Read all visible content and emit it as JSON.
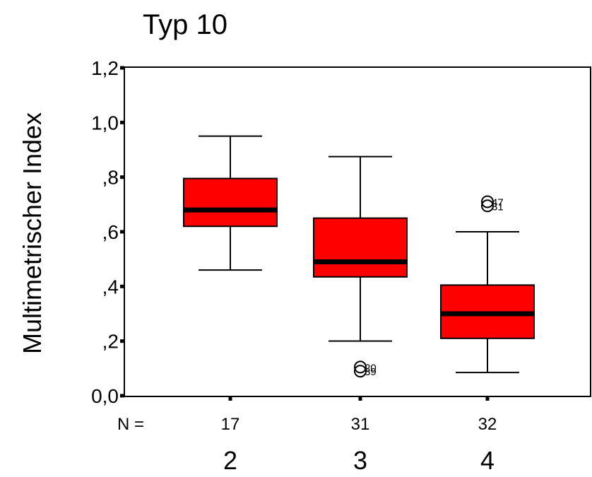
{
  "chart_data": {
    "type": "box",
    "title": "Typ 10",
    "ylabel": "Multimetrischer Index",
    "xlabel": "",
    "ylim": [
      0.0,
      1.2
    ],
    "yticks": [
      {
        "value": 0.0,
        "label": "0,0"
      },
      {
        "value": 0.2,
        "label": ",2"
      },
      {
        "value": 0.4,
        "label": ",4"
      },
      {
        "value": 0.6,
        "label": ",6"
      },
      {
        "value": 0.8,
        "label": ",8"
      },
      {
        "value": 1.0,
        "label": "1,0"
      },
      {
        "value": 1.2,
        "label": "1,2"
      }
    ],
    "n_label": "N =",
    "box_color": "#ff0000",
    "grid": false,
    "groups": [
      {
        "category": "2",
        "n": "17",
        "whisker_low": 0.46,
        "q1": 0.62,
        "median": 0.68,
        "q3": 0.795,
        "whisker_high": 0.95,
        "outliers": []
      },
      {
        "category": "3",
        "n": "31",
        "whisker_low": 0.2,
        "q1": 0.435,
        "median": 0.49,
        "q3": 0.65,
        "whisker_high": 0.875,
        "outliers": [
          {
            "value": 0.105,
            "label": "20"
          },
          {
            "value": 0.09,
            "label": "39"
          }
        ]
      },
      {
        "category": "4",
        "n": "32",
        "whisker_low": 0.085,
        "q1": 0.21,
        "median": 0.3,
        "q3": 0.405,
        "whisker_high": 0.6,
        "outliers": [
          {
            "value": 0.71,
            "label": "47"
          },
          {
            "value": 0.695,
            "label": "31"
          }
        ]
      }
    ]
  }
}
